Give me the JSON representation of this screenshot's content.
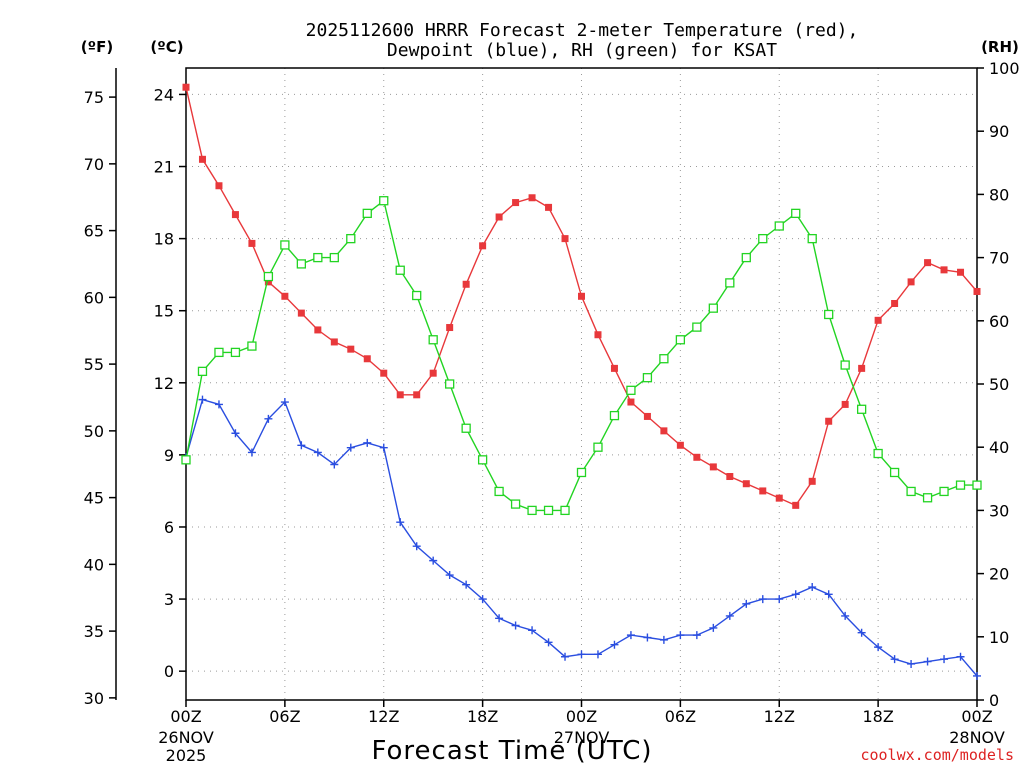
{
  "title": {
    "line1": "2025112600 HRRR Forecast 2-meter Temperature (red),",
    "line2": "Dewpoint (blue), RH (green) for KSAT"
  },
  "units": {
    "fahrenheit": "(ºF)",
    "celsius": "(ºC)",
    "rh": "(RH)"
  },
  "x_axis_title": "Forecast Time (UTC)",
  "credit": "coolwx.com/models",
  "date_labels": [
    {
      "hour": 0,
      "lines": [
        "26NOV",
        "2025"
      ]
    },
    {
      "hour": 24,
      "lines": [
        "27NOV"
      ]
    },
    {
      "hour": 48,
      "lines": [
        "28NOV"
      ]
    }
  ],
  "colors": {
    "temperature": "#e8383b",
    "dewpoint": "#2a4ee0",
    "rh": "#22d422"
  },
  "chart_data": {
    "type": "line",
    "x_unit": "forecast hour (UTC)",
    "x_range": [
      0,
      48
    ],
    "x_ticks": [
      {
        "hour": 0,
        "label": "00Z"
      },
      {
        "hour": 6,
        "label": "06Z"
      },
      {
        "hour": 12,
        "label": "12Z"
      },
      {
        "hour": 18,
        "label": "18Z"
      },
      {
        "hour": 24,
        "label": "00Z"
      },
      {
        "hour": 30,
        "label": "06Z"
      },
      {
        "hour": 36,
        "label": "12Z"
      },
      {
        "hour": 42,
        "label": "18Z"
      },
      {
        "hour": 48,
        "label": "00Z"
      }
    ],
    "y_celsius_range": [
      -1.2,
      25.1
    ],
    "y_celsius_ticks": [
      0,
      3,
      6,
      9,
      12,
      15,
      18,
      21,
      24
    ],
    "y_fahrenheit_ticks": [
      30,
      35,
      40,
      45,
      50,
      55,
      60,
      65,
      70,
      75
    ],
    "y_rh_range": [
      0,
      100
    ],
    "y_rh_ticks": [
      0,
      10,
      20,
      30,
      40,
      50,
      60,
      70,
      80,
      90,
      100
    ],
    "grid": true,
    "series": [
      {
        "name": "2-meter Temperature",
        "axis": "celsius",
        "marker": "filled-square",
        "values": [
          24.3,
          21.3,
          20.2,
          19.0,
          17.8,
          16.2,
          15.6,
          14.9,
          14.2,
          13.7,
          13.4,
          13.0,
          12.4,
          11.5,
          11.5,
          12.4,
          14.3,
          16.1,
          17.7,
          18.9,
          19.5,
          19.7,
          19.3,
          18.0,
          15.6,
          14.0,
          12.6,
          11.2,
          10.6,
          10.0,
          9.4,
          8.9,
          8.5,
          8.1,
          7.8,
          7.5,
          7.2,
          6.9,
          7.9,
          10.4,
          11.1,
          12.6,
          14.6,
          15.3,
          16.2,
          17.0,
          16.7,
          16.6,
          15.8
        ]
      },
      {
        "name": "Dewpoint",
        "axis": "celsius",
        "marker": "plus",
        "values": [
          8.9,
          11.3,
          11.1,
          9.9,
          9.1,
          10.5,
          11.2,
          9.4,
          9.1,
          8.6,
          9.3,
          9.5,
          9.3,
          6.2,
          5.2,
          4.6,
          4.0,
          3.6,
          3.0,
          2.2,
          1.9,
          1.7,
          1.2,
          0.6,
          0.7,
          0.7,
          1.1,
          1.5,
          1.4,
          1.3,
          1.5,
          1.5,
          1.8,
          2.3,
          2.8,
          3.0,
          3.0,
          3.2,
          3.5,
          3.2,
          2.3,
          1.6,
          1.0,
          0.5,
          0.3,
          0.4,
          0.5,
          0.6,
          -0.2
        ]
      },
      {
        "name": "RH",
        "axis": "rh",
        "marker": "open-square",
        "values": [
          38,
          52,
          55,
          55,
          56,
          67,
          72,
          69,
          70,
          70,
          73,
          77,
          79,
          68,
          64,
          57,
          50,
          43,
          38,
          33,
          31,
          30,
          30,
          30,
          36,
          40,
          45,
          49,
          51,
          54,
          57,
          59,
          62,
          66,
          70,
          73,
          75,
          77,
          73,
          61,
          53,
          46,
          39,
          36,
          33,
          32,
          33,
          34,
          34
        ]
      }
    ]
  }
}
